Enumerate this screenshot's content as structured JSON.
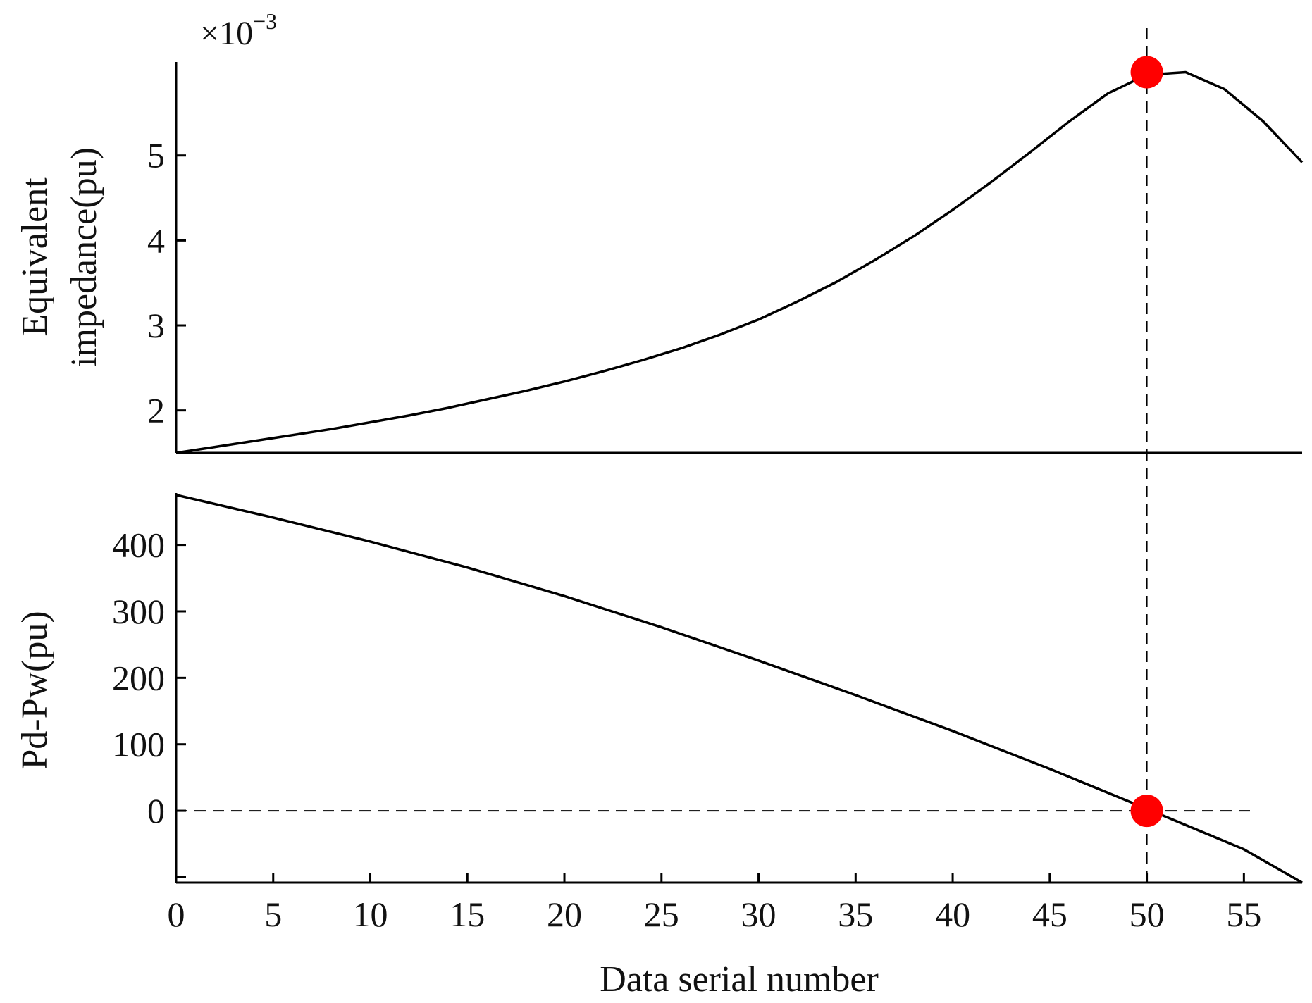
{
  "chart_data": [
    {
      "type": "line",
      "ylabel_lines": [
        "Equivalent",
        "impedance(pu)"
      ],
      "y_multiplier": {
        "base": "×10",
        "exponent": "−3"
      },
      "xlim": [
        0,
        58
      ],
      "ylim": [
        1.5,
        6.1
      ],
      "yticks": [
        2,
        3,
        4,
        5
      ],
      "ytick_labels": [
        "2",
        "3",
        "4",
        "5"
      ],
      "grid": false,
      "series": [
        {
          "x": [
            0,
            2,
            4,
            6,
            8,
            10,
            12,
            14,
            16,
            18,
            20,
            22,
            24,
            26,
            28,
            30,
            32,
            34,
            36,
            38,
            40,
            42,
            44,
            46,
            48,
            50,
            52,
            54,
            56,
            58
          ],
          "y": [
            1.5,
            1.57,
            1.64,
            1.71,
            1.78,
            1.86,
            1.94,
            2.03,
            2.13,
            2.23,
            2.34,
            2.46,
            2.59,
            2.73,
            2.89,
            3.07,
            3.28,
            3.51,
            3.77,
            4.05,
            4.36,
            4.69,
            5.04,
            5.4,
            5.73,
            5.95,
            5.98,
            5.78,
            5.4,
            4.92
          ],
          "color": "#000000"
        }
      ],
      "marker": {
        "x": 50,
        "y": 5.98,
        "color": "#ff0000"
      }
    },
    {
      "type": "line",
      "ylabel": "Pd-Pw(pu)",
      "xlabel": "Data serial number",
      "xlim": [
        0,
        58
      ],
      "ylim": [
        -108,
        478
      ],
      "xticks": [
        0,
        5,
        10,
        15,
        20,
        25,
        30,
        35,
        40,
        45,
        50,
        55
      ],
      "xtick_labels": [
        "0",
        "5",
        "10",
        "15",
        "20",
        "25",
        "30",
        "35",
        "40",
        "45",
        "50",
        "55"
      ],
      "yticks": [
        -100,
        0,
        100,
        200,
        300,
        400
      ],
      "ytick_labels": [
        "",
        "0",
        "100",
        "200",
        "300",
        "400"
      ],
      "grid": false,
      "series": [
        {
          "x": [
            0,
            5,
            10,
            15,
            20,
            25,
            30,
            35,
            40,
            45,
            50,
            55,
            58
          ],
          "y": [
            475,
            441,
            405,
            366,
            323,
            276,
            226,
            174,
            120,
            63,
            3,
            -58,
            -108
          ],
          "color": "#000000"
        }
      ],
      "reference_lines": [
        {
          "orientation": "horizontal",
          "y": 0,
          "x_range": [
            0,
            55.5
          ],
          "style": "dashed"
        },
        {
          "orientation": "vertical",
          "x": 50,
          "style": "dashed",
          "spans": "both panels"
        }
      ],
      "marker": {
        "x": 50,
        "y": 0,
        "color": "#ff0000"
      }
    }
  ]
}
